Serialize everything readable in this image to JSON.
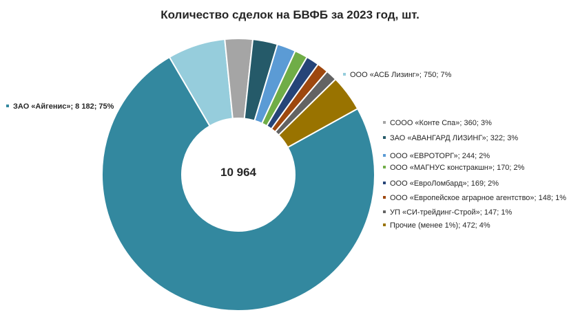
{
  "chart_data": {
    "type": "pie",
    "donut": true,
    "title": "Количество сделок на БВФБ за 2023 год, шт.",
    "center_label": "10 964",
    "slices": [
      {
        "name": "ЗАО «Айгенис»",
        "value": 8182,
        "percent": 75,
        "label": "ЗАО «Айгенис»; 8 182; 75%",
        "color": "#33889F"
      },
      {
        "name": "ООО «АСБ Лизинг»",
        "value": 750,
        "percent": 7,
        "label": "ООО «АСБ Лизинг»; 750; 7%",
        "color": "#96CDDC"
      },
      {
        "name": "СООО «Конте Спа»",
        "value": 360,
        "percent": 3,
        "label": "СООО «Конте Спа»; 360; 3%",
        "color": "#A5A5A5"
      },
      {
        "name": "ЗАО «АВАНГАРД ЛИЗИНГ»",
        "value": 322,
        "percent": 3,
        "label": "ЗАО «АВАНГАРД ЛИЗИНГ»; 322; 3%",
        "color": "#255A69"
      },
      {
        "name": "ООО «ЕВРОТОРГ»",
        "value": 244,
        "percent": 2,
        "label": "ООО «ЕВРОТОРГ»; 244; 2%",
        "color": "#5B9BD5"
      },
      {
        "name": "ООО «МАГНУС констракшн»",
        "value": 170,
        "percent": 2,
        "label": "ООО «МАГНУС констракшн»; 170; 2%",
        "color": "#70AD47"
      },
      {
        "name": "ООО «ЕвроЛомбард»",
        "value": 169,
        "percent": 2,
        "label": "ООО «ЕвроЛомбард»; 169; 2%",
        "color": "#264478"
      },
      {
        "name": "ООО «Европейское аграрное агентство»",
        "value": 148,
        "percent": 1,
        "label": "ООО «Европейское аграрное агентство»; 148; 1%",
        "color": "#9E480E"
      },
      {
        "name": "УП «СИ-трейдинг-Строй»",
        "value": 147,
        "percent": 1,
        "label": "УП «СИ-трейдинг-Строй»; 147; 1%",
        "color": "#636363"
      },
      {
        "name": "Прочие (менее 1%)",
        "value": 472,
        "percent": 4,
        "label": "Прочие (менее 1%); 472; 4%",
        "color": "#997300"
      }
    ]
  }
}
